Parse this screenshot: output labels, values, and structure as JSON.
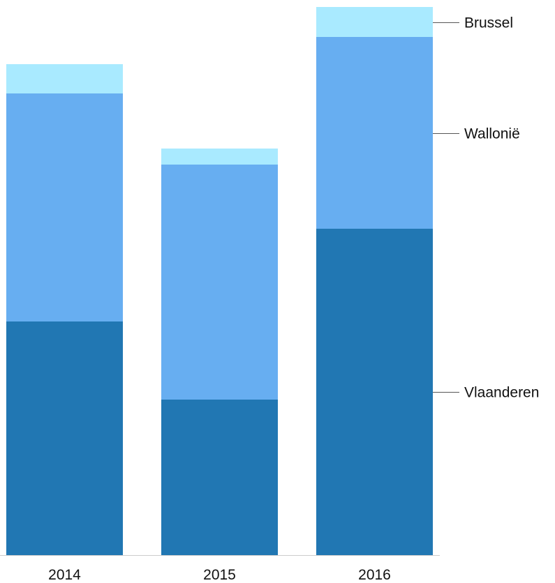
{
  "chart_data": {
    "type": "bar",
    "stacked": true,
    "categories": [
      "2014",
      "2015",
      "2016"
    ],
    "series": [
      {
        "name": "Vlaanderen",
        "values": [
          335,
          223,
          468
        ],
        "color": "#2177b3"
      },
      {
        "name": "Wallonië",
        "values": [
          327,
          337,
          275
        ],
        "color": "#67aef1"
      },
      {
        "name": "Brussel",
        "values": [
          42,
          23,
          43
        ],
        "color": "#a9eaff"
      }
    ],
    "title": "",
    "xlabel": "",
    "ylabel": "",
    "ylim": [
      0,
      786
    ],
    "grid": false,
    "legend": "right, labels attached to last bar"
  }
}
